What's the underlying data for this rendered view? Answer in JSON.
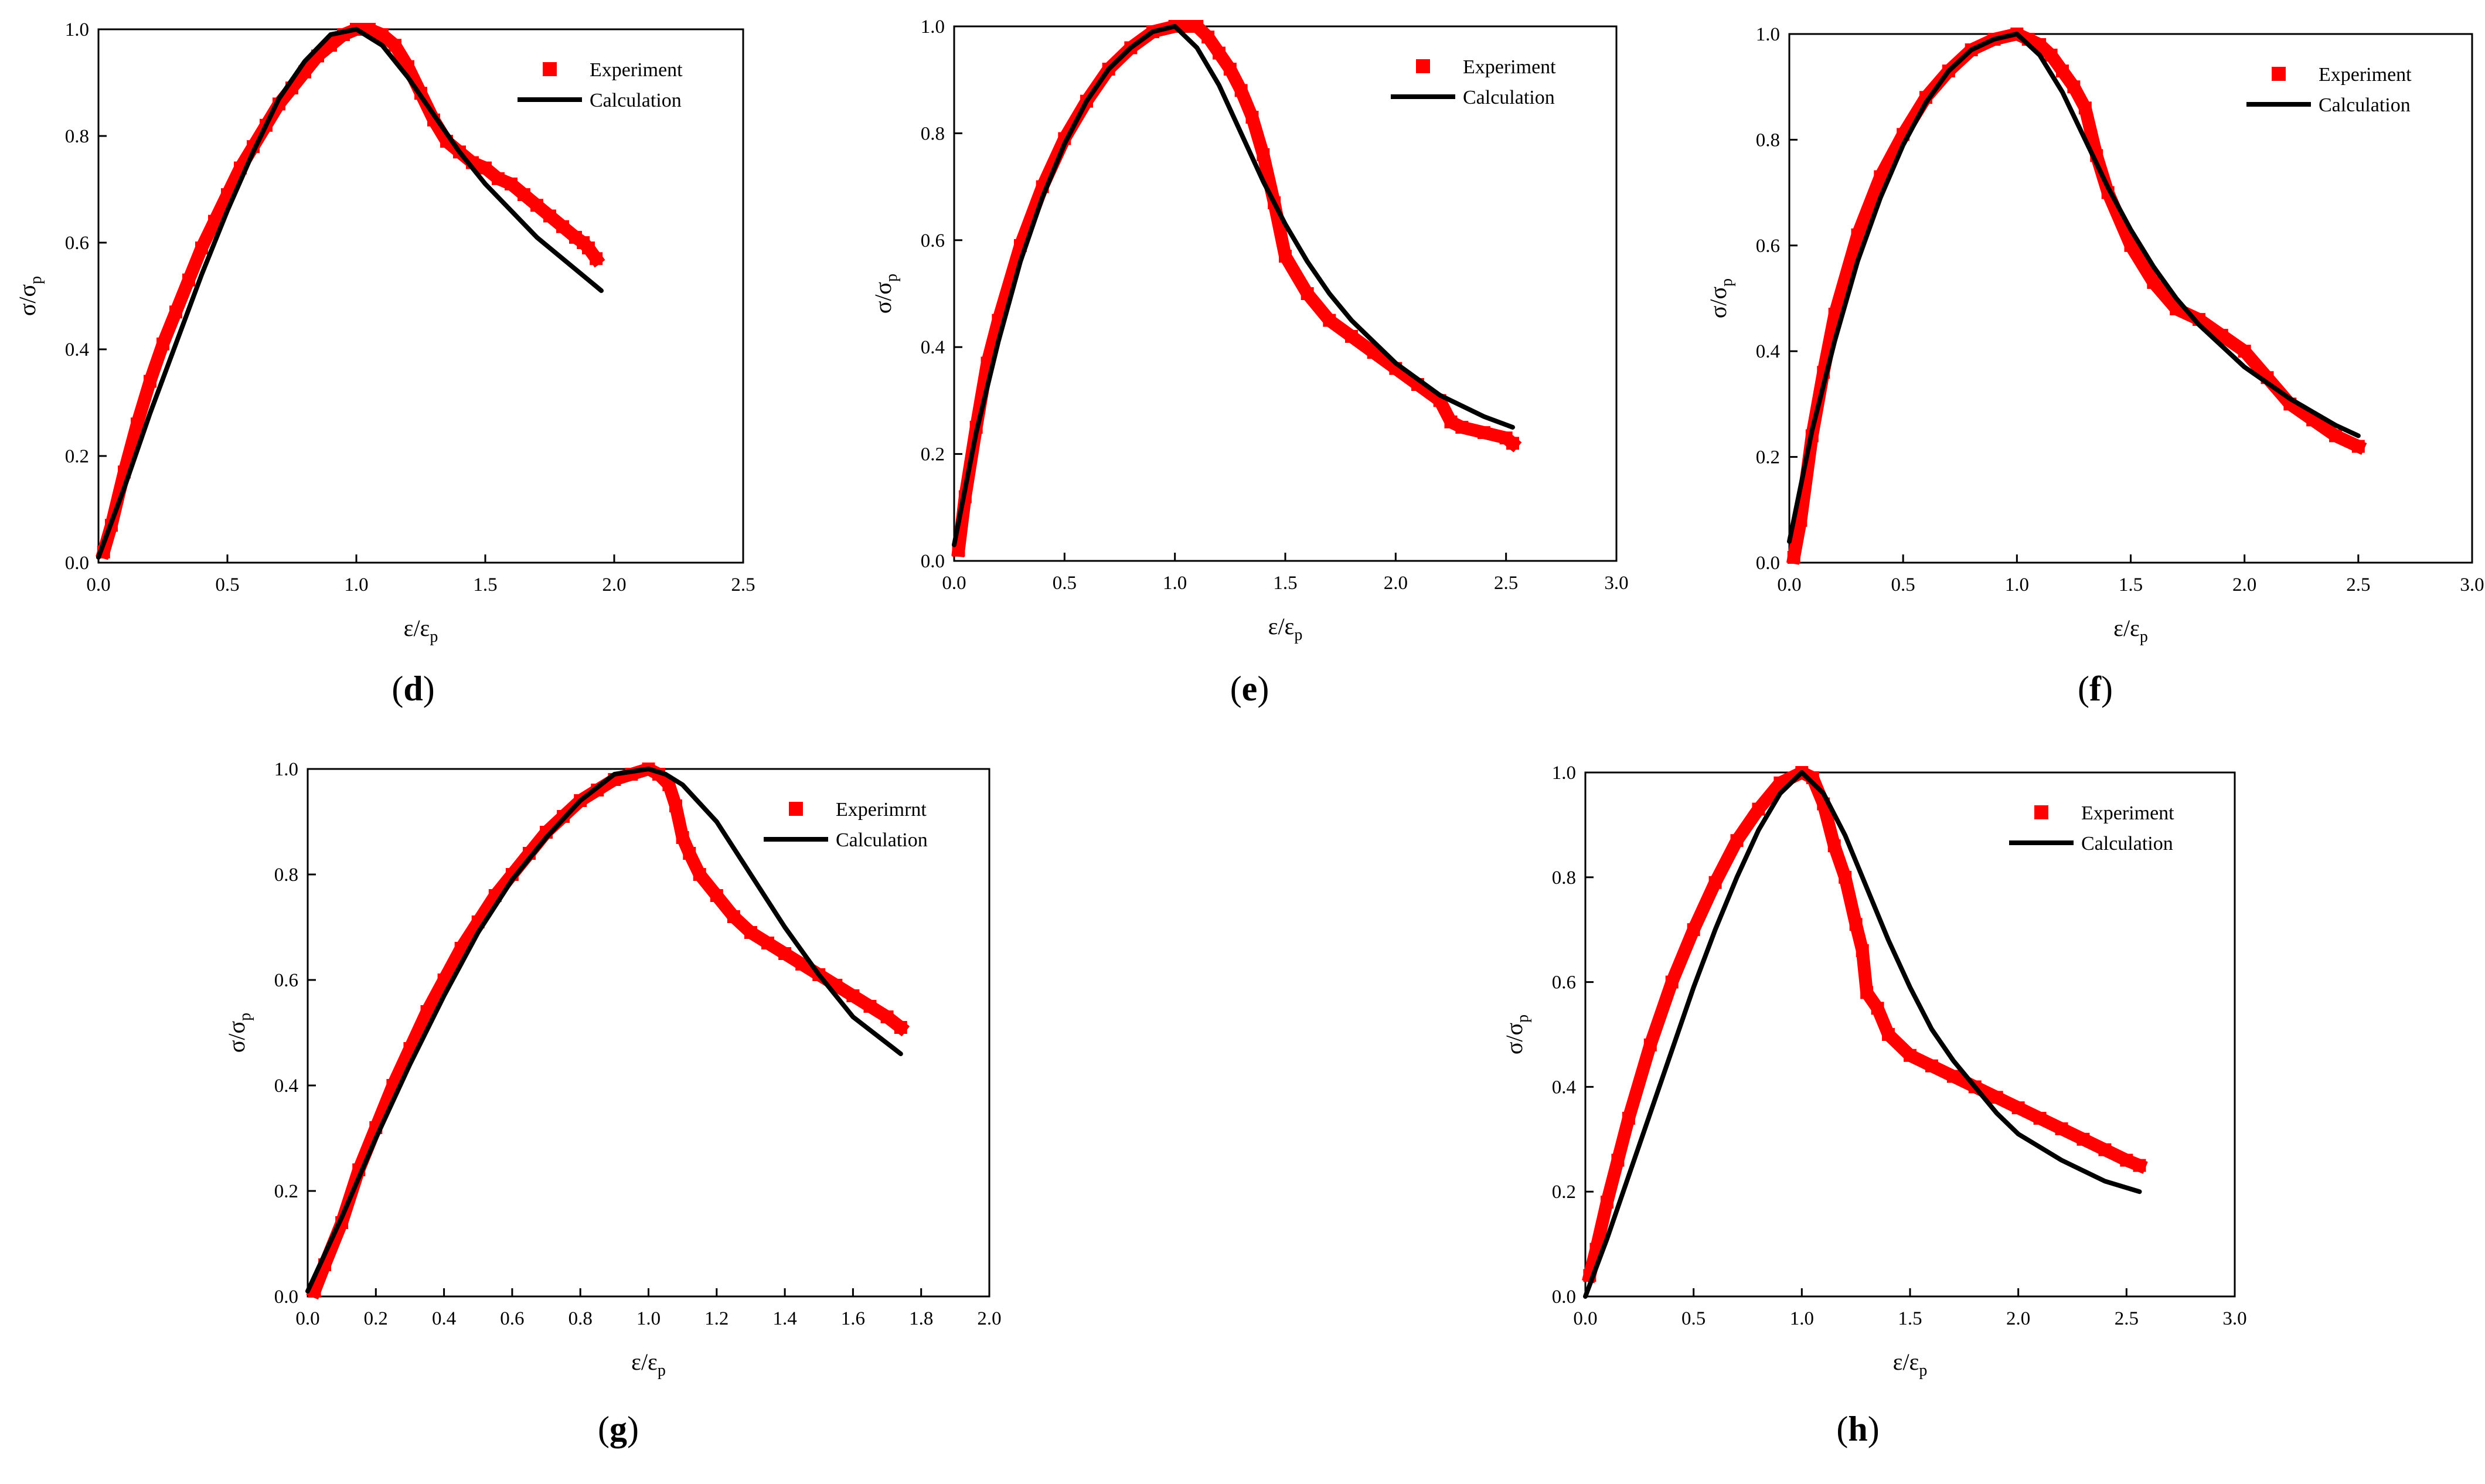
{
  "figure": {
    "panels": [
      "d",
      "e",
      "f",
      "g",
      "h"
    ]
  },
  "colors": {
    "experiment": "#ff0000",
    "calculation": "#000000",
    "axis": "#000000",
    "background": "#ffffff"
  },
  "chart_data": [
    {
      "panel": "d",
      "type": "scatter",
      "caption_letter": "d",
      "xlabel": "ε/ε",
      "xlabel_sub": "p",
      "ylabel": "σ/σ",
      "ylabel_sub": "p",
      "xlim": [
        0,
        2.5
      ],
      "ylim": [
        0,
        1.0
      ],
      "xticks": [
        "0.0",
        "0.5",
        "1.0",
        "1.5",
        "2.0",
        "2.5"
      ],
      "yticks": [
        "0.0",
        "0.2",
        "0.4",
        "0.6",
        "0.8",
        "1.0"
      ],
      "legend": {
        "experiment": "Experiment",
        "calculation": "Calculation",
        "position": "top-right"
      },
      "series": [
        {
          "name": "Experiment",
          "style": "markers",
          "x": [
            0.02,
            0.05,
            0.1,
            0.15,
            0.2,
            0.25,
            0.3,
            0.35,
            0.4,
            0.45,
            0.5,
            0.55,
            0.6,
            0.65,
            0.7,
            0.75,
            0.8,
            0.85,
            0.9,
            0.95,
            1.0,
            1.05,
            1.1,
            1.15,
            1.2,
            1.25,
            1.3,
            1.35,
            1.4,
            1.45,
            1.5,
            1.55,
            1.6,
            1.65,
            1.7,
            1.75,
            1.8,
            1.85,
            1.88,
            1.9,
            1.93
          ],
          "y": [
            0.02,
            0.07,
            0.17,
            0.26,
            0.34,
            0.41,
            0.47,
            0.53,
            0.59,
            0.64,
            0.69,
            0.74,
            0.78,
            0.82,
            0.86,
            0.89,
            0.92,
            0.95,
            0.97,
            0.99,
            1.0,
            1.0,
            0.99,
            0.97,
            0.93,
            0.88,
            0.83,
            0.79,
            0.77,
            0.75,
            0.74,
            0.72,
            0.71,
            0.69,
            0.67,
            0.65,
            0.63,
            0.61,
            0.6,
            0.59,
            0.57
          ]
        },
        {
          "name": "Calculation",
          "style": "line",
          "x": [
            0.0,
            0.1,
            0.2,
            0.3,
            0.4,
            0.5,
            0.6,
            0.7,
            0.8,
            0.9,
            1.0,
            1.1,
            1.2,
            1.3,
            1.4,
            1.5,
            1.6,
            1.7,
            1.8,
            1.9,
            1.95
          ],
          "y": [
            0.01,
            0.14,
            0.28,
            0.41,
            0.54,
            0.66,
            0.77,
            0.87,
            0.94,
            0.99,
            1.0,
            0.97,
            0.91,
            0.84,
            0.77,
            0.71,
            0.66,
            0.61,
            0.57,
            0.53,
            0.51
          ]
        }
      ]
    },
    {
      "panel": "e",
      "type": "scatter",
      "caption_letter": "e",
      "xlabel": "ε/ε",
      "xlabel_sub": "p",
      "ylabel": "σ/σ",
      "ylabel_sub": "p",
      "xlim": [
        0,
        3.0
      ],
      "ylim": [
        0,
        1.0
      ],
      "xticks": [
        "0.0",
        "0.5",
        "1.0",
        "1.5",
        "2.0",
        "2.5",
        "3.0"
      ],
      "yticks": [
        "0.0",
        "0.2",
        "0.4",
        "0.6",
        "0.8",
        "1.0"
      ],
      "legend": {
        "experiment": "Experiment",
        "calculation": "Calculation",
        "position": "top-right"
      },
      "series": [
        {
          "name": "Experiment",
          "style": "markers",
          "x": [
            0.02,
            0.05,
            0.1,
            0.15,
            0.2,
            0.3,
            0.4,
            0.5,
            0.6,
            0.7,
            0.8,
            0.9,
            1.0,
            1.05,
            1.1,
            1.15,
            1.2,
            1.25,
            1.3,
            1.35,
            1.4,
            1.45,
            1.5,
            1.6,
            1.7,
            1.8,
            1.9,
            2.0,
            2.1,
            2.2,
            2.25,
            2.3,
            2.4,
            2.5,
            2.53
          ],
          "y": [
            0.02,
            0.12,
            0.25,
            0.37,
            0.45,
            0.59,
            0.7,
            0.79,
            0.86,
            0.92,
            0.96,
            0.99,
            1.0,
            1.0,
            1.0,
            0.98,
            0.95,
            0.92,
            0.88,
            0.83,
            0.76,
            0.67,
            0.57,
            0.5,
            0.45,
            0.42,
            0.39,
            0.36,
            0.33,
            0.3,
            0.26,
            0.25,
            0.24,
            0.23,
            0.22
          ]
        },
        {
          "name": "Calculation",
          "style": "line",
          "x": [
            0.0,
            0.1,
            0.2,
            0.3,
            0.4,
            0.5,
            0.6,
            0.7,
            0.8,
            0.9,
            1.0,
            1.1,
            1.2,
            1.3,
            1.4,
            1.5,
            1.6,
            1.7,
            1.8,
            1.9,
            2.0,
            2.2,
            2.4,
            2.53
          ],
          "y": [
            0.03,
            0.24,
            0.41,
            0.56,
            0.68,
            0.78,
            0.86,
            0.92,
            0.96,
            0.99,
            1.0,
            0.96,
            0.89,
            0.8,
            0.71,
            0.63,
            0.56,
            0.5,
            0.45,
            0.41,
            0.37,
            0.31,
            0.27,
            0.25
          ]
        }
      ]
    },
    {
      "panel": "f",
      "type": "scatter",
      "caption_letter": "f",
      "xlabel": "ε/ε",
      "xlabel_sub": "p",
      "ylabel": "σ/σ",
      "ylabel_sub": "p",
      "xlim": [
        0,
        3.0
      ],
      "ylim": [
        0,
        1.0
      ],
      "xticks": [
        "0.0",
        "0.5",
        "1.0",
        "1.5",
        "2.0",
        "2.5",
        "3.0"
      ],
      "yticks": [
        "0.0",
        "0.2",
        "0.4",
        "0.6",
        "0.8",
        "1.0"
      ],
      "legend": {
        "experiment": "Experiment",
        "calculation": "Calculation",
        "position": "top-right"
      },
      "series": [
        {
          "name": "Experiment",
          "style": "markers",
          "x": [
            0.02,
            0.05,
            0.1,
            0.15,
            0.2,
            0.3,
            0.4,
            0.5,
            0.6,
            0.7,
            0.8,
            0.9,
            1.0,
            1.05,
            1.1,
            1.15,
            1.2,
            1.25,
            1.3,
            1.35,
            1.4,
            1.5,
            1.6,
            1.7,
            1.8,
            1.9,
            2.0,
            2.1,
            2.2,
            2.3,
            2.4,
            2.5
          ],
          "y": [
            0.01,
            0.08,
            0.24,
            0.36,
            0.47,
            0.62,
            0.73,
            0.81,
            0.88,
            0.93,
            0.97,
            0.99,
            1.0,
            0.99,
            0.98,
            0.96,
            0.93,
            0.9,
            0.86,
            0.77,
            0.7,
            0.6,
            0.53,
            0.48,
            0.46,
            0.43,
            0.4,
            0.35,
            0.3,
            0.27,
            0.24,
            0.22
          ]
        },
        {
          "name": "Calculation",
          "style": "line",
          "x": [
            0.0,
            0.1,
            0.2,
            0.3,
            0.4,
            0.5,
            0.6,
            0.7,
            0.8,
            0.9,
            1.0,
            1.1,
            1.2,
            1.3,
            1.4,
            1.5,
            1.6,
            1.7,
            1.8,
            1.9,
            2.0,
            2.2,
            2.4,
            2.5
          ],
          "y": [
            0.04,
            0.25,
            0.42,
            0.57,
            0.69,
            0.79,
            0.87,
            0.93,
            0.97,
            0.99,
            1.0,
            0.96,
            0.89,
            0.8,
            0.71,
            0.63,
            0.56,
            0.5,
            0.45,
            0.41,
            0.37,
            0.31,
            0.26,
            0.24
          ]
        }
      ]
    },
    {
      "panel": "g",
      "type": "scatter",
      "caption_letter": "g",
      "xlabel": "ε/ε",
      "xlabel_sub": "p",
      "ylabel": "σ/σ",
      "ylabel_sub": "p",
      "xlim": [
        0,
        2.0
      ],
      "ylim": [
        0,
        1.0
      ],
      "xticks": [
        "0.0",
        "0.2",
        "0.4",
        "0.6",
        "0.8",
        "1.0",
        "1.2",
        "1.4",
        "1.6",
        "1.8",
        "2.0"
      ],
      "yticks": [
        "0.0",
        "0.2",
        "0.4",
        "0.6",
        "0.8",
        "1.0"
      ],
      "legend": {
        "experiment": "Experimrnt",
        "calculation": "Calculation",
        "position": "top-right"
      },
      "series": [
        {
          "name": "Experimrnt",
          "style": "markers",
          "x": [
            0.02,
            0.05,
            0.1,
            0.15,
            0.2,
            0.25,
            0.3,
            0.35,
            0.4,
            0.45,
            0.5,
            0.55,
            0.6,
            0.65,
            0.7,
            0.75,
            0.8,
            0.85,
            0.9,
            0.95,
            1.0,
            1.03,
            1.06,
            1.08,
            1.1,
            1.12,
            1.15,
            1.2,
            1.25,
            1.3,
            1.35,
            1.4,
            1.45,
            1.5,
            1.55,
            1.6,
            1.65,
            1.7,
            1.74
          ],
          "y": [
            0.01,
            0.06,
            0.14,
            0.24,
            0.32,
            0.4,
            0.47,
            0.54,
            0.6,
            0.66,
            0.71,
            0.76,
            0.8,
            0.84,
            0.88,
            0.91,
            0.94,
            0.96,
            0.98,
            0.99,
            1.0,
            0.99,
            0.97,
            0.93,
            0.87,
            0.84,
            0.8,
            0.76,
            0.72,
            0.69,
            0.67,
            0.65,
            0.63,
            0.61,
            0.59,
            0.57,
            0.55,
            0.53,
            0.51
          ]
        },
        {
          "name": "Calculation",
          "style": "line",
          "x": [
            0.0,
            0.1,
            0.2,
            0.3,
            0.4,
            0.5,
            0.6,
            0.7,
            0.8,
            0.9,
            1.0,
            1.05,
            1.1,
            1.2,
            1.3,
            1.4,
            1.5,
            1.6,
            1.7,
            1.74
          ],
          "y": [
            0.01,
            0.15,
            0.3,
            0.44,
            0.57,
            0.69,
            0.79,
            0.87,
            0.94,
            0.99,
            1.0,
            0.99,
            0.97,
            0.9,
            0.8,
            0.7,
            0.61,
            0.53,
            0.48,
            0.46
          ]
        }
      ]
    },
    {
      "panel": "h",
      "type": "scatter",
      "caption_letter": "h",
      "xlabel": "ε/ε",
      "xlabel_sub": "p",
      "ylabel": "σ/σ",
      "ylabel_sub": "p",
      "xlim": [
        0,
        3.0
      ],
      "ylim": [
        0,
        1.0
      ],
      "xticks": [
        "0.0",
        "0.5",
        "1.0",
        "1.5",
        "2.0",
        "2.5",
        "3.0"
      ],
      "yticks": [
        "0.0",
        "0.2",
        "0.4",
        "0.6",
        "0.8",
        "1.0"
      ],
      "legend": {
        "experiment": "Experiment",
        "calculation": "Calculation",
        "position": "top-right"
      },
      "series": [
        {
          "name": "Experiment",
          "style": "markers",
          "x": [
            0.02,
            0.05,
            0.1,
            0.15,
            0.2,
            0.3,
            0.4,
            0.5,
            0.6,
            0.7,
            0.8,
            0.9,
            1.0,
            1.05,
            1.1,
            1.15,
            1.2,
            1.25,
            1.28,
            1.3,
            1.35,
            1.4,
            1.5,
            1.6,
            1.7,
            1.8,
            1.9,
            2.0,
            2.1,
            2.2,
            2.3,
            2.4,
            2.5,
            2.56
          ],
          "y": [
            0.04,
            0.09,
            0.18,
            0.26,
            0.34,
            0.48,
            0.6,
            0.7,
            0.79,
            0.87,
            0.93,
            0.98,
            1.0,
            0.99,
            0.94,
            0.86,
            0.8,
            0.71,
            0.66,
            0.58,
            0.55,
            0.5,
            0.46,
            0.44,
            0.42,
            0.4,
            0.38,
            0.36,
            0.34,
            0.32,
            0.3,
            0.28,
            0.26,
            0.25
          ]
        },
        {
          "name": "Calculation",
          "style": "line",
          "x": [
            0.0,
            0.1,
            0.2,
            0.3,
            0.4,
            0.5,
            0.6,
            0.7,
            0.8,
            0.9,
            1.0,
            1.1,
            1.2,
            1.3,
            1.4,
            1.5,
            1.6,
            1.7,
            1.8,
            1.9,
            2.0,
            2.2,
            2.4,
            2.56
          ],
          "y": [
            0.0,
            0.11,
            0.23,
            0.35,
            0.47,
            0.59,
            0.7,
            0.8,
            0.89,
            0.96,
            1.0,
            0.96,
            0.88,
            0.78,
            0.68,
            0.59,
            0.51,
            0.45,
            0.4,
            0.35,
            0.31,
            0.26,
            0.22,
            0.2
          ]
        }
      ]
    }
  ]
}
